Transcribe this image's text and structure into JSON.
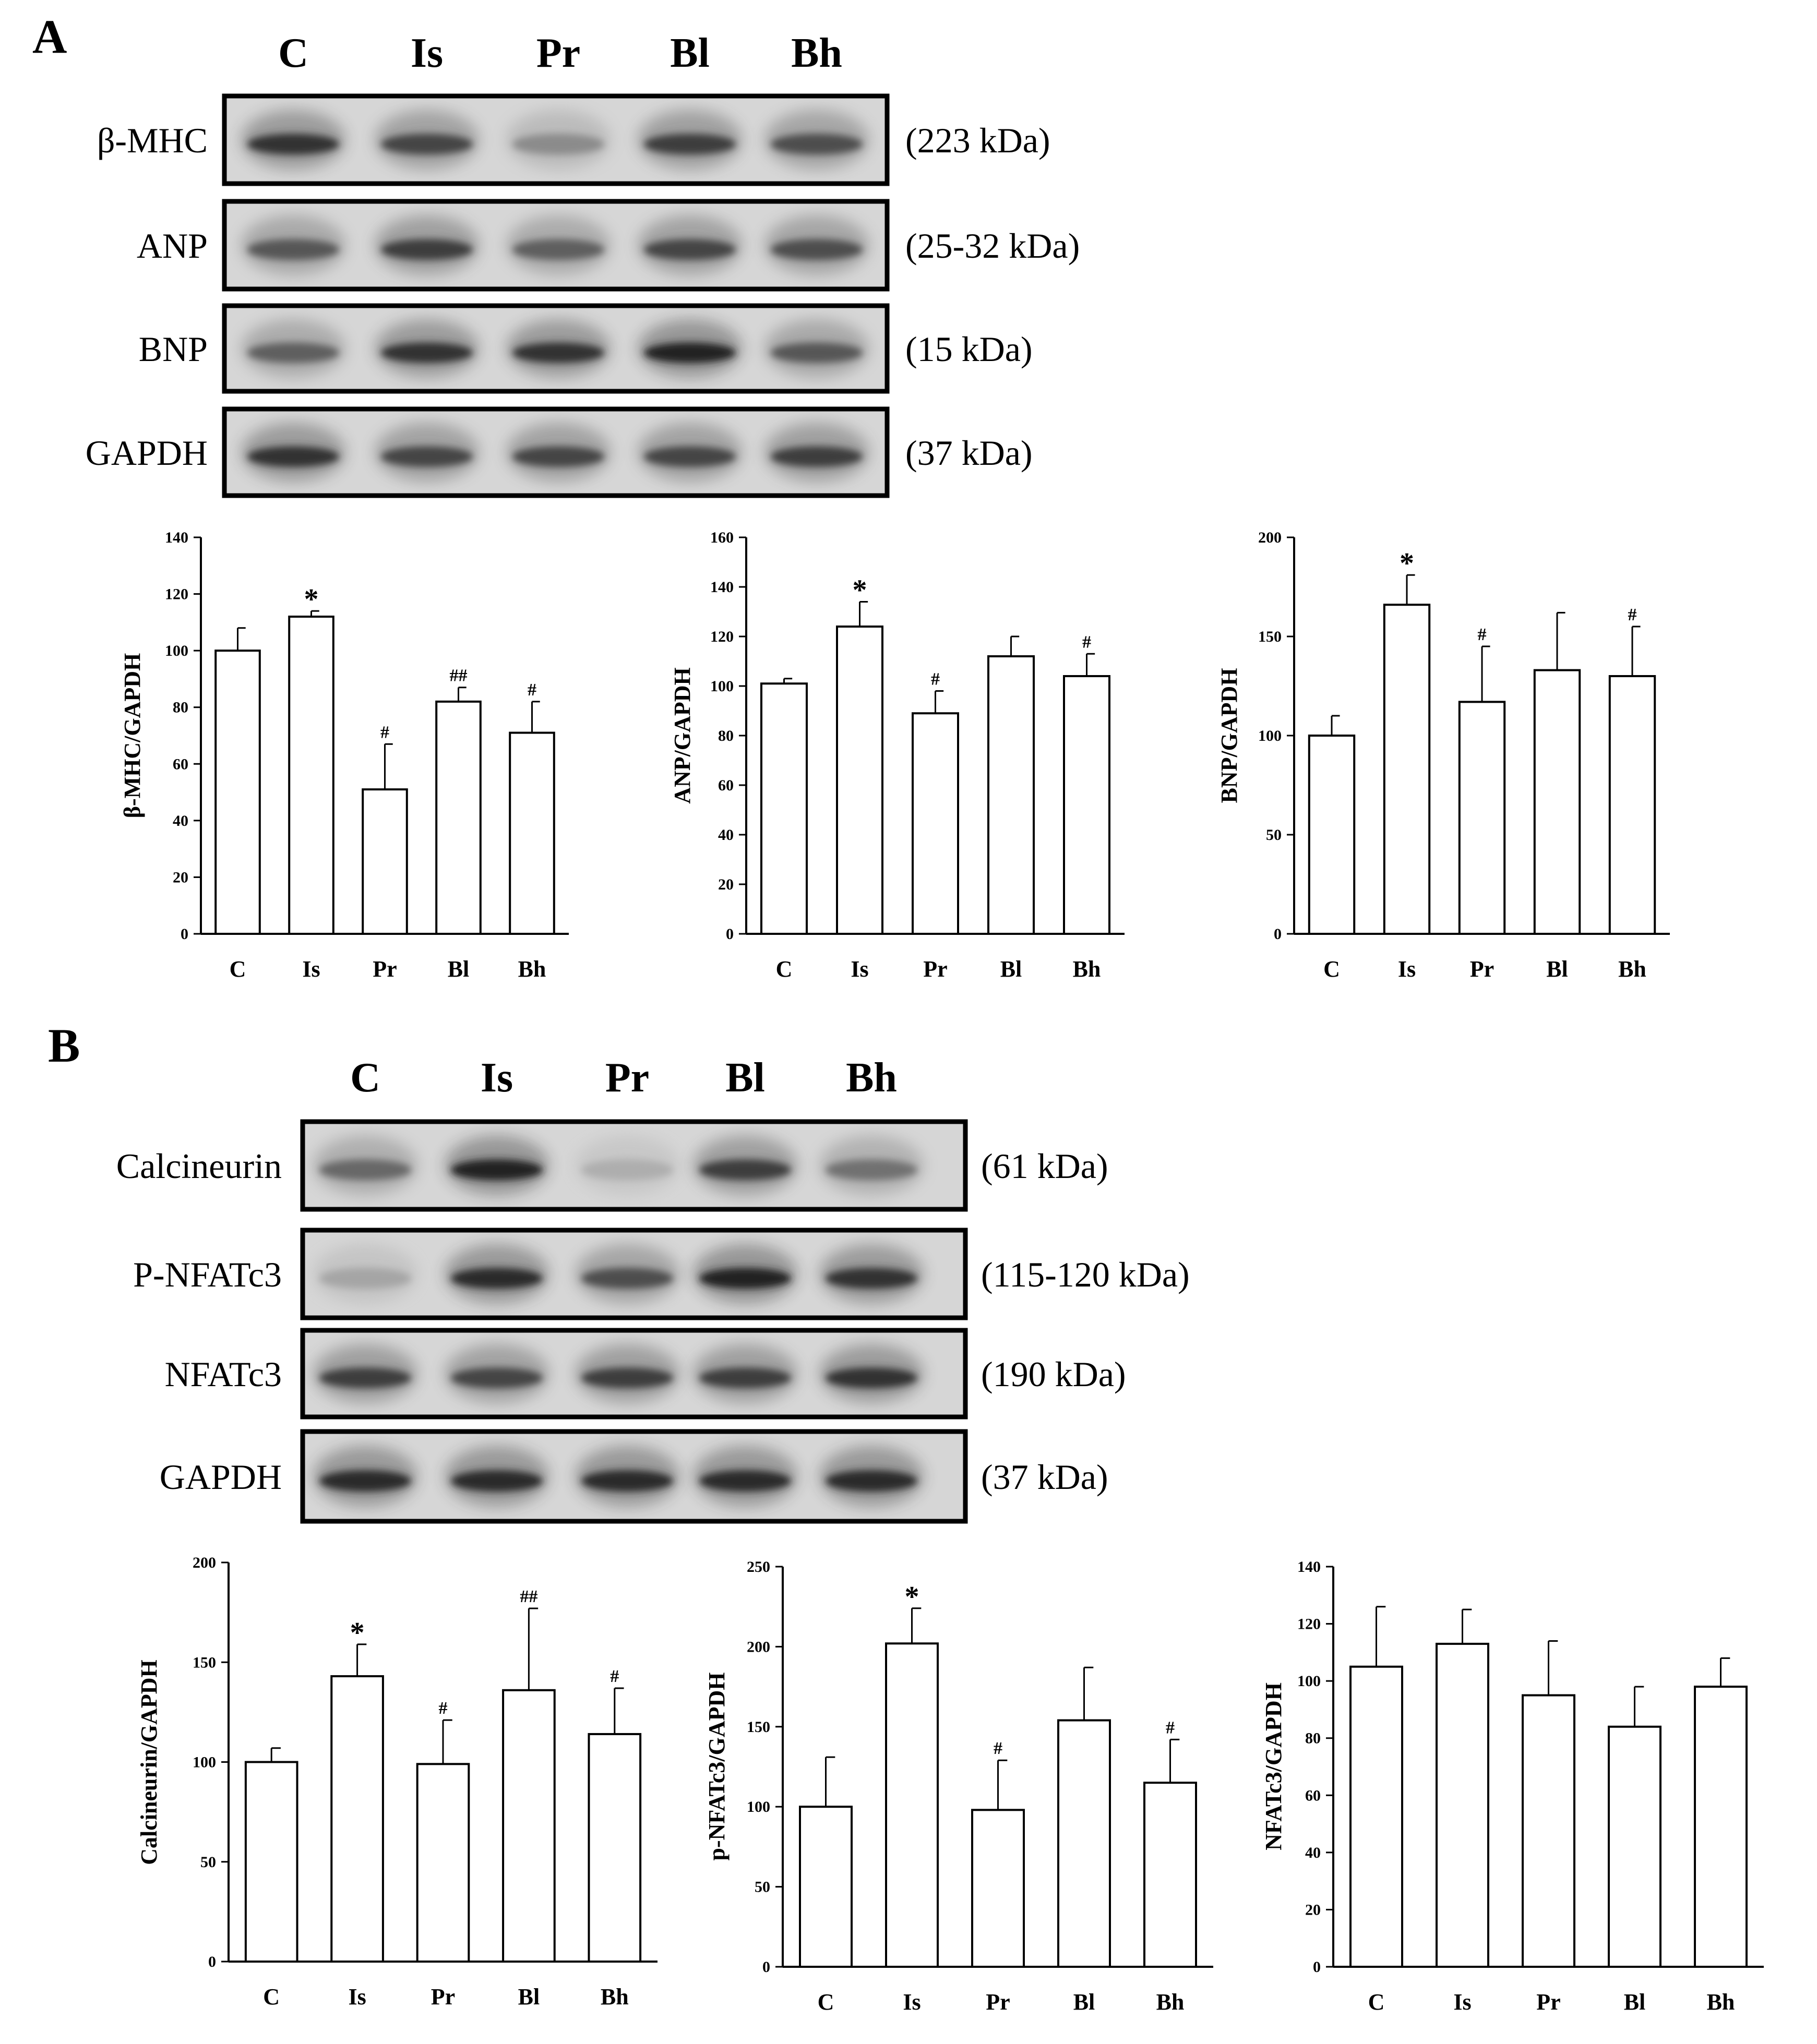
{
  "panels": [
    {
      "letter": "A",
      "lanes": [
        "C",
        "Is",
        "Pr",
        "Bl",
        "Bh"
      ],
      "blots": [
        {
          "label": "β-MHC",
          "kda": "(223 kDa)",
          "intensity": [
            0.85,
            0.75,
            0.35,
            0.8,
            0.7
          ]
        },
        {
          "label": "ANP",
          "kda": "(25-32 kDa)",
          "intensity": [
            0.65,
            0.8,
            0.6,
            0.75,
            0.7
          ]
        },
        {
          "label": "BNP",
          "kda": "(15 kDa)",
          "intensity": [
            0.6,
            0.85,
            0.85,
            0.95,
            0.65
          ]
        },
        {
          "label": "GAPDH",
          "kda": "(37 kDa)",
          "intensity": [
            0.85,
            0.75,
            0.75,
            0.75,
            0.8
          ]
        }
      ]
    },
    {
      "letter": "B",
      "lanes": [
        "C",
        "Is",
        "Pr",
        "Bl",
        "Bh"
      ],
      "blots": [
        {
          "label": "Calcineurin",
          "kda": "(61 kDa)",
          "intensity": [
            0.55,
            0.95,
            0.15,
            0.8,
            0.5
          ]
        },
        {
          "label": "P-NFATc3",
          "kda": "(115-120 kDa)",
          "intensity": [
            0.2,
            0.9,
            0.7,
            0.95,
            0.85
          ]
        },
        {
          "label": "NFATc3",
          "kda": "(190 kDa)",
          "intensity": [
            0.8,
            0.75,
            0.8,
            0.8,
            0.85
          ]
        },
        {
          "label": "GAPDH",
          "kda": "(37 kDa)",
          "intensity": [
            0.9,
            0.9,
            0.9,
            0.9,
            0.9
          ]
        }
      ]
    }
  ],
  "chart_data": [
    {
      "type": "bar",
      "categories": [
        "C",
        "Is",
        "Pr",
        "Bl",
        "Bh"
      ],
      "values": [
        100,
        112,
        51,
        82,
        71
      ],
      "errors": [
        8,
        2,
        16,
        5,
        11
      ],
      "marks": [
        "",
        "*",
        "#",
        "##",
        "#"
      ],
      "ylabel": "β-MHC/GAPDH",
      "ylim": [
        0,
        140
      ],
      "ticks": [
        0,
        20,
        40,
        60,
        80,
        100,
        120,
        140
      ]
    },
    {
      "type": "bar",
      "categories": [
        "C",
        "Is",
        "Pr",
        "Bl",
        "Bh"
      ],
      "values": [
        101,
        124,
        89,
        112,
        104
      ],
      "errors": [
        2,
        10,
        9,
        8,
        9
      ],
      "marks": [
        "",
        "*",
        "#",
        "",
        "#"
      ],
      "ylabel": "ANP/GAPDH",
      "ylim": [
        0,
        160
      ],
      "ticks": [
        0,
        20,
        40,
        60,
        80,
        100,
        120,
        140,
        160
      ]
    },
    {
      "type": "bar",
      "categories": [
        "C",
        "Is",
        "Pr",
        "Bl",
        "Bh"
      ],
      "values": [
        100,
        166,
        117,
        133,
        130
      ],
      "errors": [
        10,
        15,
        28,
        29,
        25
      ],
      "marks": [
        "",
        "*",
        "#",
        "",
        "#"
      ],
      "ylabel": "BNP/GAPDH",
      "ylim": [
        0,
        200
      ],
      "ticks": [
        0,
        50,
        100,
        150,
        200
      ]
    },
    {
      "type": "bar",
      "categories": [
        "C",
        "Is",
        "Pr",
        "Bl",
        "Bh"
      ],
      "values": [
        100,
        143,
        99,
        136,
        114
      ],
      "errors": [
        7,
        16,
        22,
        41,
        23
      ],
      "marks": [
        "",
        "*",
        "#",
        "##",
        "#"
      ],
      "ylabel": "Calcineurin/GAPDH",
      "ylim": [
        0,
        200
      ],
      "ticks": [
        0,
        50,
        100,
        150,
        200
      ]
    },
    {
      "type": "bar",
      "categories": [
        "C",
        "Is",
        "Pr",
        "Bl",
        "Bh"
      ],
      "values": [
        100,
        202,
        98,
        154,
        115
      ],
      "errors": [
        31,
        22,
        31,
        33,
        27
      ],
      "marks": [
        "",
        "*",
        "#",
        "",
        "#"
      ],
      "ylabel": "p-NFATc3/GAPDH",
      "ylim": [
        0,
        250
      ],
      "ticks": [
        0,
        50,
        100,
        150,
        200,
        250
      ]
    },
    {
      "type": "bar",
      "categories": [
        "C",
        "Is",
        "Pr",
        "Bl",
        "Bh"
      ],
      "values": [
        105,
        113,
        95,
        84,
        98
      ],
      "errors": [
        21,
        12,
        19,
        14,
        10
      ],
      "marks": [
        "",
        "",
        "",
        "",
        ""
      ],
      "ylabel": "NFATc3/GAPDH",
      "ylim": [
        0,
        140
      ],
      "ticks": [
        0,
        20,
        40,
        60,
        80,
        100,
        120,
        140
      ]
    }
  ]
}
